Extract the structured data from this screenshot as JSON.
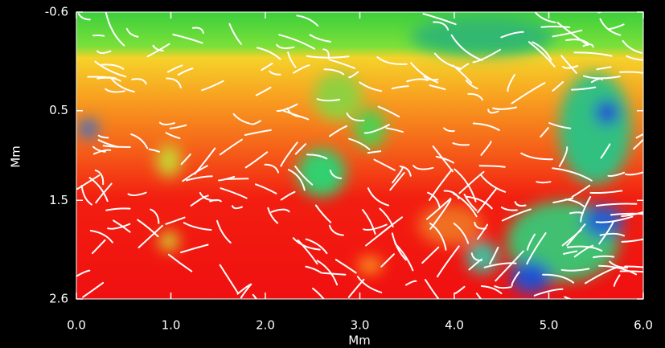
{
  "chart_data": {
    "type": "image",
    "x_label": "Mm",
    "y_label": "Mm",
    "xlim": [
      0,
      6
    ],
    "ylim": [
      2.6,
      -0.6
    ],
    "xticks": [
      {
        "value": 0,
        "label": "0.0"
      },
      {
        "value": 1,
        "label": "1.0"
      },
      {
        "value": 2,
        "label": "2.0"
      },
      {
        "value": 3,
        "label": "3.0"
      },
      {
        "value": 4,
        "label": "4.0"
      },
      {
        "value": 5,
        "label": "5.0"
      },
      {
        "value": 6,
        "label": "6.0"
      }
    ],
    "yticks": [
      -0.6,
      0.5,
      1.5,
      2.6
    ]
  }
}
